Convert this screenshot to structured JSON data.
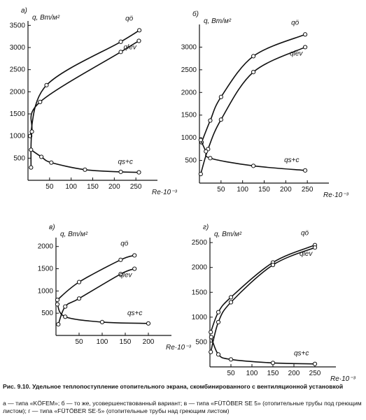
{
  "chart_data": [
    {
      "type": "line",
      "title": "а)",
      "y_label": "q, Вт/м²",
      "x_label": "Re·10⁻³",
      "xlim": [
        0,
        300
      ],
      "ylim": [
        0,
        3600
      ],
      "xticks": [
        50,
        100,
        150,
        200,
        250
      ],
      "yticks": [
        500,
        1000,
        1500,
        2000,
        2500,
        3000,
        3500
      ],
      "series": [
        {
          "name": "qö",
          "color": "#111111",
          "x": [
            5,
            43,
            215,
            258
          ],
          "values": [
            1000,
            2150,
            3130,
            3390
          ]
        },
        {
          "name": "qlev",
          "color": "#111111",
          "x": [
            7,
            9,
            28,
            215,
            257
          ],
          "values": [
            290,
            1100,
            1770,
            2900,
            3150
          ]
        },
        {
          "name": "qs+c",
          "color": "#111111",
          "x": [
            7,
            31,
            54,
            132,
            215,
            257
          ],
          "values": [
            690,
            530,
            400,
            240,
            190,
            180
          ]
        }
      ]
    },
    {
      "type": "line",
      "title": "б)",
      "y_label": "q, Вт/м²",
      "x_label": "Re·10⁻³",
      "xlim": [
        0,
        300
      ],
      "ylim": [
        0,
        3500
      ],
      "xticks": [
        50,
        100,
        150,
        200,
        250
      ],
      "yticks": [
        500,
        1000,
        1500,
        2000,
        2500,
        3000
      ],
      "series": [
        {
          "name": "qö",
          "color": "#111111",
          "x": [
            5,
            25,
            50,
            125,
            245
          ],
          "values": [
            900,
            1380,
            1900,
            2800,
            3280
          ]
        },
        {
          "name": "qlev",
          "color": "#111111",
          "x": [
            3,
            20,
            50,
            125,
            245
          ],
          "values": [
            200,
            750,
            1400,
            2450,
            3000
          ]
        },
        {
          "name": "qs+c",
          "color": "#111111",
          "x": [
            3,
            15,
            25,
            125,
            245
          ],
          "values": [
            950,
            700,
            550,
            380,
            280
          ]
        }
      ]
    },
    {
      "type": "line",
      "title": "в)",
      "y_label": "q, Вт/м²",
      "x_label": "Re·10⁻³",
      "xlim": [
        0,
        250
      ],
      "ylim": [
        0,
        2200
      ],
      "xticks": [
        50,
        100,
        150,
        200
      ],
      "yticks": [
        500,
        1000,
        1500,
        2000
      ],
      "series": [
        {
          "name": "qö",
          "color": "#111111",
          "x": [
            3,
            50,
            140,
            170
          ],
          "values": [
            800,
            1200,
            1700,
            1800
          ]
        },
        {
          "name": "qlev",
          "color": "#111111",
          "x": [
            5,
            20,
            50,
            140,
            170
          ],
          "values": [
            250,
            650,
            830,
            1380,
            1500
          ]
        },
        {
          "name": "qs+c",
          "color": "#111111",
          "x": [
            3,
            20,
            100,
            200
          ],
          "values": [
            700,
            420,
            300,
            270
          ]
        }
      ]
    },
    {
      "type": "line",
      "title": "г)",
      "y_label": "q, Вт/м²",
      "x_label": "Re·10⁻³",
      "xlim": [
        0,
        300
      ],
      "ylim": [
        0,
        2600
      ],
      "xticks": [
        50,
        100,
        150,
        200,
        250
      ],
      "yticks": [
        500,
        1000,
        1500,
        2000,
        2500
      ],
      "series": [
        {
          "name": "qö",
          "color": "#111111",
          "x": [
            2,
            20,
            50,
            150,
            250
          ],
          "values": [
            700,
            1100,
            1400,
            2100,
            2450
          ]
        },
        {
          "name": "qlev",
          "color": "#111111",
          "x": [
            2,
            20,
            50,
            150,
            250
          ],
          "values": [
            300,
            900,
            1300,
            2050,
            2400
          ]
        },
        {
          "name": "qs+c",
          "color": "#111111",
          "x": [
            3,
            20,
            50,
            150,
            250
          ],
          "values": [
            600,
            250,
            150,
            80,
            60
          ]
        }
      ]
    }
  ],
  "caption": {
    "title": "Рис. 9.10. Удельное теплопоступление отопительного экрана, скомбинированного с вентиляционной установкой",
    "text": "а — типа «KÖFEM»; б — то же, усовершенствованный вариант; в — типа «FÜTÖBER SE 5» (отопительные трубы под греющим листом); г — типа «FÜTÖBER SE·5» (отопительные трубы над греющим листом)"
  }
}
